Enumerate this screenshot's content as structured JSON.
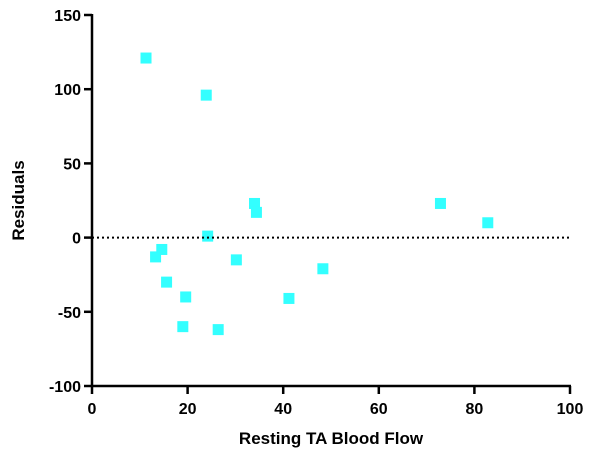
{
  "chart_data": {
    "type": "scatter",
    "xlabel": "Resting TA Blood Flow",
    "ylabel": "Residuals",
    "xlim": [
      0,
      100
    ],
    "ylim": [
      -100,
      150
    ],
    "xticks": [
      0,
      20,
      40,
      60,
      80,
      100
    ],
    "yticks": [
      -100,
      -50,
      0,
      50,
      100,
      150
    ],
    "grid": false,
    "reference_line": {
      "y": 0,
      "style": "dotted"
    },
    "marker": {
      "shape": "square",
      "color": "#33FFFF"
    },
    "series": [
      {
        "points": [
          {
            "x": 11.3,
            "y": 121
          },
          {
            "x": 23.9,
            "y": 96
          },
          {
            "x": 34.0,
            "y": 23
          },
          {
            "x": 34.4,
            "y": 17
          },
          {
            "x": 24.2,
            "y": 1
          },
          {
            "x": 14.6,
            "y": -8
          },
          {
            "x": 13.3,
            "y": -13
          },
          {
            "x": 30.2,
            "y": -15
          },
          {
            "x": 15.6,
            "y": -30
          },
          {
            "x": 19.6,
            "y": -40
          },
          {
            "x": 19.0,
            "y": -60
          },
          {
            "x": 26.4,
            "y": -62
          },
          {
            "x": 41.2,
            "y": -41
          },
          {
            "x": 48.3,
            "y": -21
          },
          {
            "x": 72.9,
            "y": 23
          },
          {
            "x": 82.8,
            "y": 10
          }
        ]
      }
    ]
  }
}
